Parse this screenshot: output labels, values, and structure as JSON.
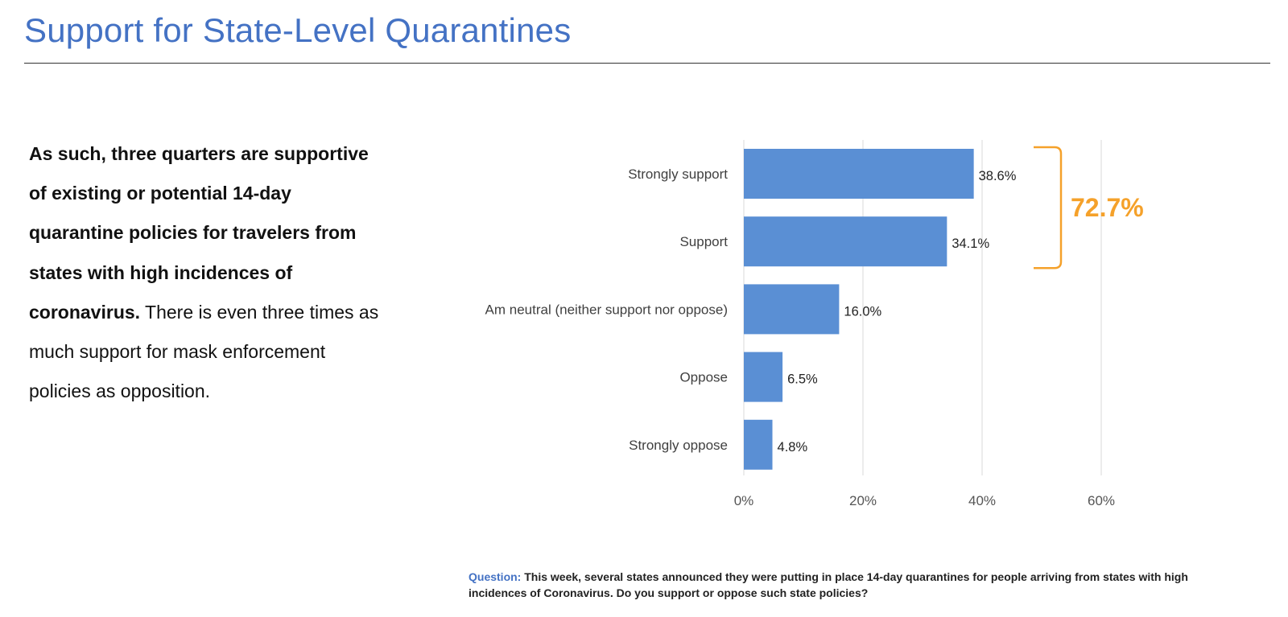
{
  "page": {
    "title": "Support for State-Level Quarantines"
  },
  "summary": {
    "bold_text": "As such, three quarters are supportive of existing or potential 14-day quarantine policies for travelers from states with high incidences of coronavirus.",
    "plain_text": " There is even three times as much support for mask enforcement policies as opposition."
  },
  "callout": {
    "label": "72.7%",
    "color": "#f5a12a",
    "spans_categories": [
      "Strongly support",
      "Support"
    ]
  },
  "question": {
    "label": "Question:",
    "text": " This week, several states announced they were putting in place 14-day quarantines for people arriving from states with high incidences of Coronavirus. Do you support or oppose such state policies?"
  },
  "colors": {
    "title": "#4472c4",
    "bar": "#5a8fd4",
    "grid": "#d9d9d9",
    "bracket": "#f5a12a"
  },
  "chart_data": {
    "type": "bar",
    "orientation": "horizontal",
    "title": "",
    "xlabel": "",
    "ylabel": "",
    "categories": [
      "Strongly support",
      "Support",
      "Am neutral (neither support nor oppose)",
      "Oppose",
      "Strongly oppose"
    ],
    "values": [
      38.6,
      34.1,
      16.0,
      6.5,
      4.8
    ],
    "value_labels": [
      "38.6%",
      "34.1%",
      "16.0%",
      "6.5%",
      "4.8%"
    ],
    "xlim": [
      0,
      60
    ],
    "xticks": [
      0,
      20,
      40,
      60
    ],
    "xtick_labels": [
      "0%",
      "20%",
      "40%",
      "60%"
    ],
    "grid": "vertical",
    "legend": "none"
  }
}
